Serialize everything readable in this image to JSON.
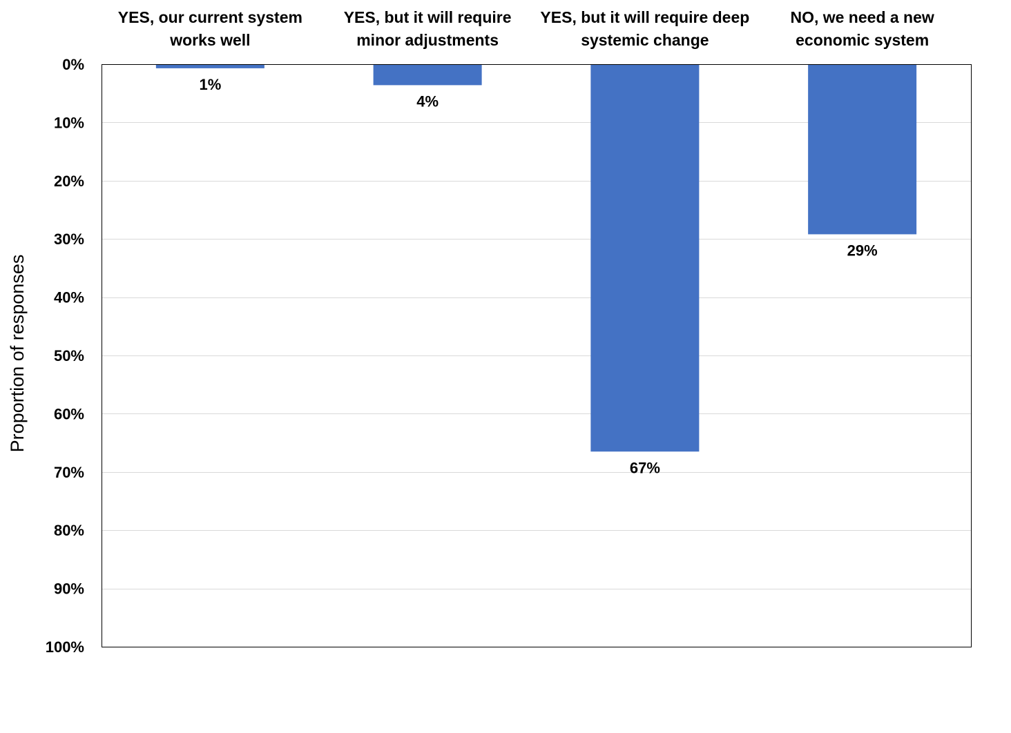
{
  "chart_data": {
    "type": "bar",
    "orientation": "vertical",
    "y_axis_inverted": true,
    "categories": [
      [
        "YES, our current system",
        "works well"
      ],
      [
        "YES, but it will require",
        "minor adjustments"
      ],
      [
        "YES, but it will require deep",
        "systemic change"
      ],
      [
        "NO, we need a new",
        "economic system"
      ]
    ],
    "values": [
      0.7,
      3.6,
      66.5,
      29.2
    ],
    "data_labels": [
      "1%",
      "4%",
      "67%",
      "29%"
    ],
    "title": "",
    "xlabel": "",
    "ylabel": "Proportion of responses",
    "ylim": [
      0,
      100
    ],
    "ytick_values": [
      0,
      10,
      20,
      30,
      40,
      50,
      60,
      70,
      80,
      90,
      100
    ],
    "ytick_labels": [
      "0%",
      "10%",
      "20%",
      "30%",
      "40%",
      "50%",
      "60%",
      "70%",
      "80%",
      "90%",
      "100%"
    ],
    "category_axis_position": "top",
    "grid": true,
    "legend": "none",
    "colors": {
      "bar": "#4472C4",
      "gridline": "#D9D9D9",
      "axis": "#000000",
      "text": "#000000"
    }
  }
}
